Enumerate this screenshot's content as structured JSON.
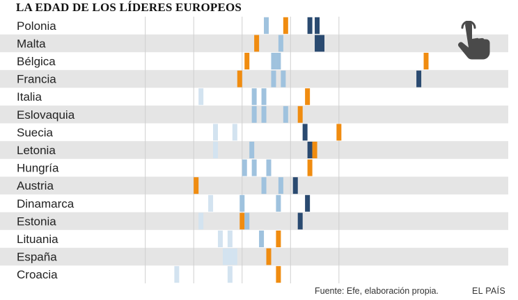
{
  "title": "LA EDAD DE LOS LÍDERES EUROPEOS",
  "source": "Fuente: Efe, elaboración propia.",
  "brand": "EL PAÍS",
  "icons": {
    "interaction": "tap-hand-icon"
  },
  "colors": {
    "row_band": "#e5e5e5",
    "pale_blue": "#d3e3f0",
    "light_blue": "#9fc2de",
    "dark_blue": "#2a4a70",
    "orange": "#f08c10",
    "gridline": "#cfcfcf",
    "icon": "#4a4a4a"
  },
  "chart_data": {
    "type": "dot-strip",
    "title": "LA EDAD DE LOS LÍDERES EUROPEOS",
    "marker_scale": [
      0.5,
      7.0
    ],
    "gridlines": [
      1.2,
      2.2,
      3.2,
      4.2,
      5.2
    ],
    "rows": [
      {
        "country": "Polonia",
        "marks": [
          {
            "v": 3.7,
            "c": "light"
          },
          {
            "v": 4.1,
            "c": "orange"
          },
          {
            "v": 4.6,
            "c": "dark"
          },
          {
            "v": 4.75,
            "c": "dark"
          }
        ]
      },
      {
        "country": "Malta",
        "marks": [
          {
            "v": 3.5,
            "c": "orange"
          },
          {
            "v": 4.0,
            "c": "light"
          },
          {
            "v": 4.75,
            "c": "dark"
          },
          {
            "v": 4.85,
            "c": "dark"
          }
        ]
      },
      {
        "country": "Bélgica",
        "marks": [
          {
            "v": 3.3,
            "c": "orange"
          },
          {
            "v": 3.85,
            "c": "light"
          },
          {
            "v": 3.95,
            "c": "light"
          },
          {
            "v": 7.0,
            "c": "orange"
          }
        ]
      },
      {
        "country": "Francia",
        "marks": [
          {
            "v": 3.15,
            "c": "orange"
          },
          {
            "v": 3.85,
            "c": "light"
          },
          {
            "v": 4.05,
            "c": "light"
          },
          {
            "v": 6.85,
            "c": "dark"
          }
        ]
      },
      {
        "country": "Italia",
        "marks": [
          {
            "v": 2.35,
            "c": "pale"
          },
          {
            "v": 3.45,
            "c": "light"
          },
          {
            "v": 3.65,
            "c": "light"
          },
          {
            "v": 4.55,
            "c": "orange"
          }
        ]
      },
      {
        "country": "Eslovaquia",
        "marks": [
          {
            "v": 3.45,
            "c": "light"
          },
          {
            "v": 3.65,
            "c": "light"
          },
          {
            "v": 4.1,
            "c": "light"
          },
          {
            "v": 4.4,
            "c": "orange"
          }
        ]
      },
      {
        "country": "Suecia",
        "marks": [
          {
            "v": 2.65,
            "c": "pale"
          },
          {
            "v": 3.05,
            "c": "pale"
          },
          {
            "v": 4.5,
            "c": "dark"
          },
          {
            "v": 5.2,
            "c": "orange"
          }
        ]
      },
      {
        "country": "Letonia",
        "marks": [
          {
            "v": 2.65,
            "c": "pale"
          },
          {
            "v": 3.4,
            "c": "light"
          },
          {
            "v": 4.6,
            "c": "dark"
          },
          {
            "v": 4.7,
            "c": "orange"
          }
        ]
      },
      {
        "country": "Hungría",
        "marks": [
          {
            "v": 3.25,
            "c": "light"
          },
          {
            "v": 3.45,
            "c": "light"
          },
          {
            "v": 3.75,
            "c": "light"
          },
          {
            "v": 4.6,
            "c": "orange"
          }
        ]
      },
      {
        "country": "Austria",
        "marks": [
          {
            "v": 2.25,
            "c": "orange"
          },
          {
            "v": 3.65,
            "c": "light"
          },
          {
            "v": 4.0,
            "c": "light"
          },
          {
            "v": 4.3,
            "c": "dark"
          }
        ]
      },
      {
        "country": "Dinamarca",
        "marks": [
          {
            "v": 2.55,
            "c": "pale"
          },
          {
            "v": 3.2,
            "c": "light"
          },
          {
            "v": 3.95,
            "c": "light"
          },
          {
            "v": 4.55,
            "c": "dark"
          }
        ]
      },
      {
        "country": "Estonia",
        "marks": [
          {
            "v": 2.35,
            "c": "pale"
          },
          {
            "v": 3.2,
            "c": "orange"
          },
          {
            "v": 3.3,
            "c": "light"
          },
          {
            "v": 4.4,
            "c": "dark"
          }
        ]
      },
      {
        "country": "Lituania",
        "marks": [
          {
            "v": 2.75,
            "c": "pale"
          },
          {
            "v": 2.95,
            "c": "pale"
          },
          {
            "v": 3.6,
            "c": "light"
          },
          {
            "v": 3.95,
            "c": "orange"
          }
        ]
      },
      {
        "country": "España",
        "marks": [
          {
            "v": 2.85,
            "c": "pale"
          },
          {
            "v": 2.95,
            "c": "pale"
          },
          {
            "v": 3.05,
            "c": "pale"
          },
          {
            "v": 3.75,
            "c": "orange"
          }
        ]
      },
      {
        "country": "Croacia",
        "marks": [
          {
            "v": 1.85,
            "c": "pale"
          },
          {
            "v": 2.95,
            "c": "pale"
          },
          {
            "v": 3.95,
            "c": "orange"
          }
        ]
      }
    ]
  }
}
